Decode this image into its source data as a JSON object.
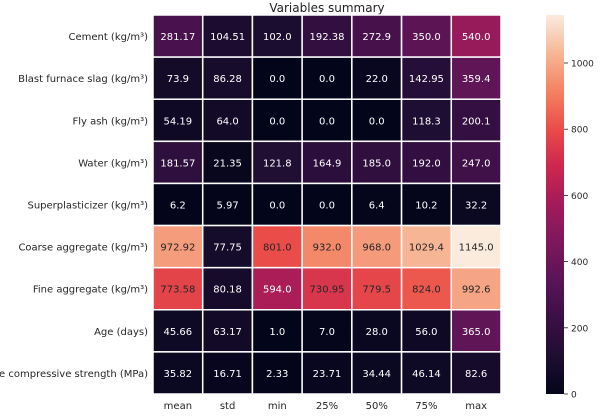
{
  "chart_data": {
    "type": "heatmap",
    "title": "Variables summary",
    "columns": [
      "mean",
      "std",
      "min",
      "25%",
      "50%",
      "75%",
      "max"
    ],
    "rows": [
      "Cement (kg/m³)",
      "Blast furnace slag (kg/m³)",
      "Fly ash (kg/m³)",
      "Water (kg/m³)",
      "Superplasticizer (kg/m³)",
      "Coarse aggregate (kg/m³)",
      "Fine aggregate (kg/m³)",
      "Age (days)",
      "Concrete compressive strength (MPa)"
    ],
    "values": [
      [
        "281.17",
        "104.51",
        "102.0",
        "192.38",
        "272.9",
        "350.0",
        "540.0"
      ],
      [
        "73.9",
        "86.28",
        "0.0",
        "0.0",
        "22.0",
        "142.95",
        "359.4"
      ],
      [
        "54.19",
        "64.0",
        "0.0",
        "0.0",
        "0.0",
        "118.3",
        "200.1"
      ],
      [
        "181.57",
        "21.35",
        "121.8",
        "164.9",
        "185.0",
        "192.0",
        "247.0"
      ],
      [
        "6.2",
        "5.97",
        "0.0",
        "0.0",
        "6.4",
        "10.2",
        "32.2"
      ],
      [
        "972.92",
        "77.75",
        "801.0",
        "932.0",
        "968.0",
        "1029.4",
        "1145.0"
      ],
      [
        "773.58",
        "80.18",
        "594.0",
        "730.95",
        "779.5",
        "824.0",
        "992.6"
      ],
      [
        "45.66",
        "63.17",
        "1.0",
        "7.0",
        "28.0",
        "56.0",
        "365.0"
      ],
      [
        "35.82",
        "16.71",
        "2.33",
        "23.71",
        "34.44",
        "46.14",
        "82.6"
      ]
    ],
    "colorbar": {
      "min": 0,
      "max": 1145,
      "ticks": [
        0,
        200,
        400,
        600,
        800,
        1000
      ],
      "colormap": "rocket"
    }
  }
}
